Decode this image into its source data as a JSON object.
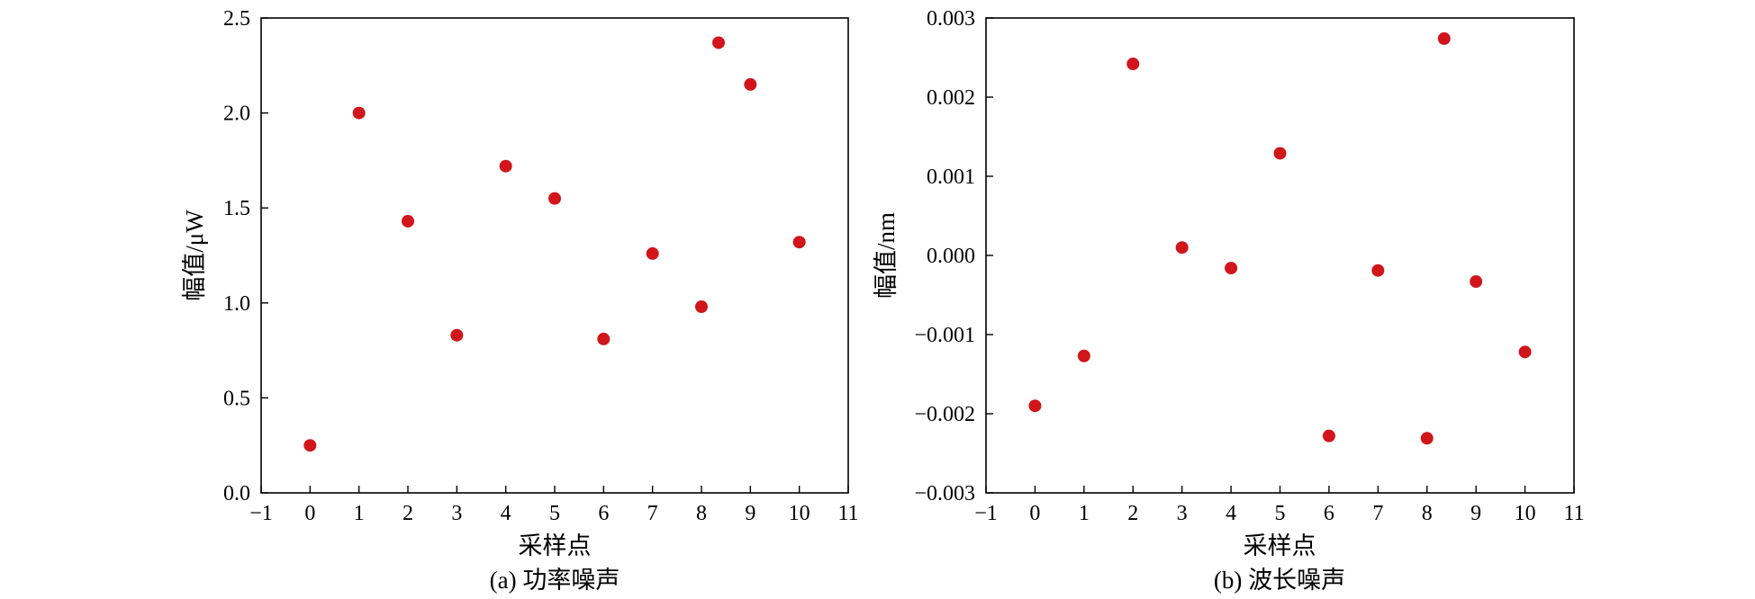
{
  "chart_data": [
    {
      "type": "scatter",
      "caption": "(a) 功率噪声",
      "xlabel": "采样点",
      "ylabel": "幅值/μW",
      "xlim": [
        -1,
        11
      ],
      "ylim": [
        0,
        2.5
      ],
      "xticks": [
        -1,
        0,
        1,
        2,
        3,
        4,
        5,
        6,
        7,
        8,
        9,
        10,
        11
      ],
      "xtick_labels": [
        "−1",
        "0",
        "1",
        "2",
        "3",
        "4",
        "5",
        "6",
        "7",
        "8",
        "9",
        "10",
        "11"
      ],
      "yticks": [
        0,
        0.5,
        1.0,
        1.5,
        2.0,
        2.5
      ],
      "ytick_labels": [
        "0.0",
        "0.5",
        "1.0",
        "1.5",
        "2.0",
        "2.5"
      ],
      "grid": false,
      "marker_color": "#d0161b",
      "series": [
        {
          "x": [
            0,
            1,
            2,
            3,
            4,
            5,
            6,
            7,
            8,
            8.35,
            9,
            10
          ],
          "y": [
            0.25,
            2.0,
            1.43,
            0.83,
            1.72,
            1.55,
            0.81,
            1.26,
            0.98,
            2.37,
            2.15,
            1.32
          ]
        }
      ]
    },
    {
      "type": "scatter",
      "caption": "(b) 波长噪声",
      "xlabel": "采样点",
      "ylabel": "幅值/nm",
      "xlim": [
        -1,
        11
      ],
      "ylim": [
        -0.003,
        0.003
      ],
      "xticks": [
        -1,
        0,
        1,
        2,
        3,
        4,
        5,
        6,
        7,
        8,
        9,
        10,
        11
      ],
      "xtick_labels": [
        "−1",
        "0",
        "1",
        "2",
        "3",
        "4",
        "5",
        "6",
        "7",
        "8",
        "9",
        "10",
        "11"
      ],
      "yticks": [
        -0.003,
        -0.002,
        -0.001,
        0,
        0.001,
        0.002,
        0.003
      ],
      "ytick_labels": [
        "−0.003",
        "−0.002",
        "−0.001",
        "0.000",
        "0.001",
        "0.002",
        "0.003"
      ],
      "grid": false,
      "marker_color": "#d0161b",
      "series": [
        {
          "x": [
            0,
            1,
            2,
            3,
            4,
            5,
            6,
            7,
            8,
            8.35,
            9,
            10
          ],
          "y": [
            -0.0019,
            -0.00127,
            0.00242,
            0.0001,
            -0.00016,
            0.00129,
            -0.00228,
            -0.00019,
            -0.00231,
            0.00274,
            -0.00033,
            -0.00122
          ]
        }
      ]
    }
  ]
}
